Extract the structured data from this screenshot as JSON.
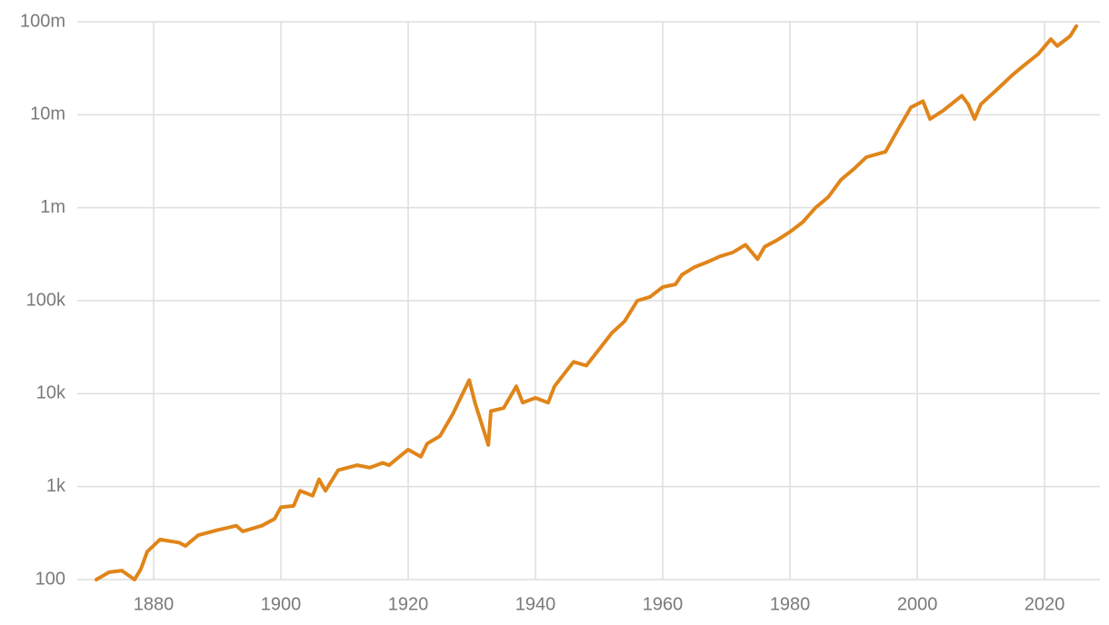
{
  "chart_data": {
    "type": "line",
    "yscale": "log",
    "grid": true,
    "color": "#e0851a",
    "xlim": [
      1868,
      2028.7
    ],
    "xticks": [
      1880,
      1900,
      1920,
      1940,
      1960,
      1980,
      2000,
      2020
    ],
    "ylim": [
      100,
      100000000
    ],
    "yticks": [
      {
        "value": 100,
        "label": "100"
      },
      {
        "value": 1000,
        "label": "1k"
      },
      {
        "value": 10000,
        "label": "10k"
      },
      {
        "value": 100000,
        "label": "100k"
      },
      {
        "value": 1000000,
        "label": "1m"
      },
      {
        "value": 10000000,
        "label": "10m"
      },
      {
        "value": 100000000,
        "label": "100m"
      }
    ],
    "x": [
      1871,
      1873,
      1875,
      1877,
      1878,
      1879,
      1881,
      1884,
      1885,
      1887,
      1890,
      1893,
      1894,
      1897,
      1899,
      1900,
      1902,
      1903,
      1905,
      1906,
      1907,
      1909,
      1912,
      1914,
      1916,
      1917,
      1919,
      1920,
      1922,
      1923,
      1925,
      1927,
      1929.6,
      1930.5,
      1932.6,
      1933,
      1935,
      1937,
      1938,
      1940,
      1942,
      1943,
      1945,
      1946,
      1948,
      1950,
      1952,
      1954,
      1956,
      1958,
      1960,
      1962,
      1963,
      1965,
      1967,
      1969,
      1971,
      1973,
      1974.9,
      1976,
      1978,
      1980,
      1982,
      1984,
      1986,
      1988,
      1990,
      1992,
      1995,
      1997,
      1999,
      2000.9,
      2002,
      2004,
      2007,
      2008,
      2009,
      2010,
      2013,
      2015,
      2017,
      2019,
      2021,
      2022,
      2024,
      2025
    ],
    "values": [
      100,
      120,
      125,
      100,
      130,
      200,
      270,
      250,
      230,
      300,
      340,
      380,
      330,
      380,
      450,
      600,
      620,
      900,
      800,
      1200,
      900,
      1500,
      1700,
      1600,
      1800,
      1700,
      2200,
      2500,
      2100,
      2900,
      3500,
      6000,
      14000,
      8000,
      2800,
      6500,
      7000,
      12000,
      8000,
      9000,
      8000,
      12000,
      18000,
      22000,
      20000,
      30000,
      45000,
      60000,
      100000,
      110000,
      140000,
      150000,
      190000,
      230000,
      260000,
      300000,
      330000,
      400000,
      280000,
      380000,
      450000,
      550000,
      700000,
      1000000,
      1300000,
      2000000,
      2600000,
      3500000,
      4000000,
      7000000,
      12000000,
      14000000,
      9000000,
      11000000,
      16000000,
      13000000,
      9000000,
      13000000,
      20000000,
      27000000,
      35000000,
      45000000,
      65000000,
      55000000,
      70000000,
      90000000
    ]
  }
}
